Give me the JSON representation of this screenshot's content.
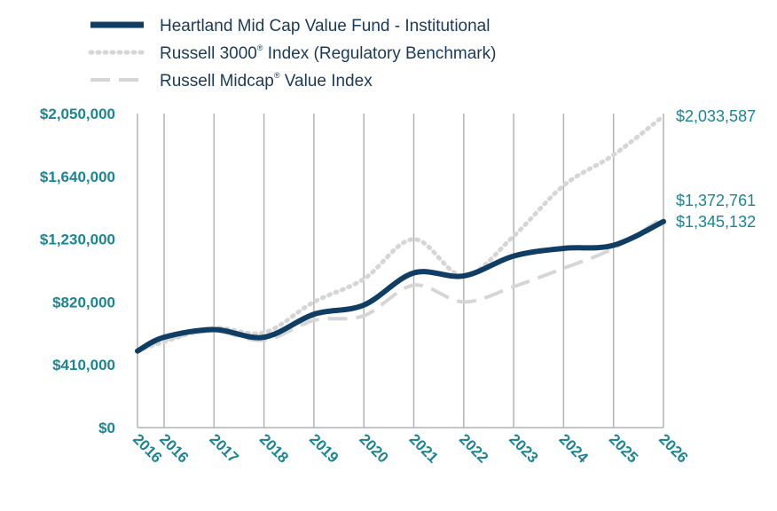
{
  "chart_data": {
    "type": "line",
    "legend_position": "top-left",
    "grid": "vertical lines",
    "x": [
      "2016",
      "2016",
      "2017",
      "2018",
      "2019",
      "2020",
      "2021",
      "2022",
      "2023",
      "2024",
      "2025",
      "2026"
    ],
    "ylim": [
      0,
      2050000
    ],
    "yticks": [
      "$0",
      "$410,000",
      "$820,000",
      "$1,230,000",
      "$1,640,000",
      "$2,050,000"
    ],
    "ytick_values": [
      0,
      410000,
      820000,
      1230000,
      1640000,
      2050000
    ],
    "series": [
      {
        "name": "Heartland Mid Cap Value Fund - Institutional",
        "style": "solid",
        "color": "#0f3d63",
        "values": [
          500000,
          590000,
          640000,
          590000,
          740000,
          800000,
          1010000,
          990000,
          1120000,
          1170000,
          1190000,
          1345132
        ],
        "end_label": "$1,345,132"
      },
      {
        "name": "Russell 3000",
        "name_suffix": "Index (Regulatory Benchmark)",
        "superscript": "®",
        "style": "dotted",
        "color": "#d6d6d6",
        "values": [
          500000,
          560000,
          650000,
          620000,
          820000,
          970000,
          1230000,
          990000,
          1250000,
          1580000,
          1780000,
          2033587
        ],
        "end_label": "$2,033,587"
      },
      {
        "name": "Russell Midcap",
        "name_suffix": "Value Index",
        "superscript": "®",
        "style": "dashed",
        "color": "#d6d6d6",
        "values": [
          500000,
          570000,
          630000,
          570000,
          700000,
          730000,
          930000,
          820000,
          920000,
          1040000,
          1170000,
          1372761
        ],
        "end_label": "$1,372,761"
      }
    ]
  }
}
